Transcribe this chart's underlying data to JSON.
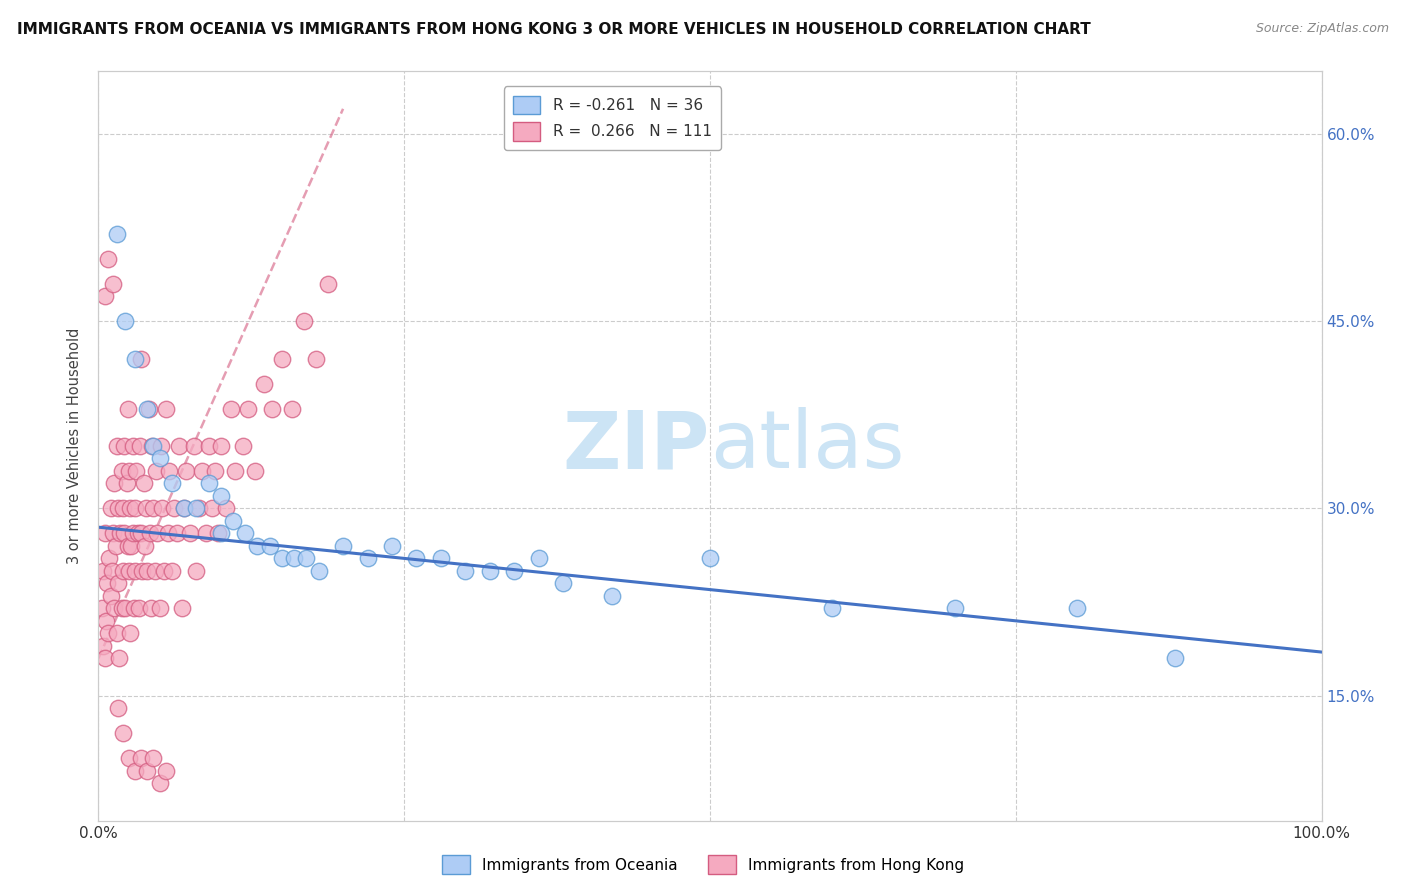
{
  "title": "IMMIGRANTS FROM OCEANIA VS IMMIGRANTS FROM HONG KONG 3 OR MORE VEHICLES IN HOUSEHOLD CORRELATION CHART",
  "source": "Source: ZipAtlas.com",
  "ylabel": "3 or more Vehicles in Household",
  "xlim": [
    0.0,
    1.0
  ],
  "ylim": [
    0.05,
    0.65
  ],
  "yticks": [
    0.15,
    0.3,
    0.45,
    0.6
  ],
  "ytick_labels": [
    "15.0%",
    "30.0%",
    "45.0%",
    "60.0%"
  ],
  "xticks": [
    0.0,
    0.25,
    0.5,
    0.75,
    1.0
  ],
  "xtick_labels": [
    "0.0%",
    "",
    "",
    "",
    "100.0%"
  ],
  "legend_r1": "R = -0.261",
  "legend_n1": "N = 36",
  "legend_r2": "R =  0.266",
  "legend_n2": "N = 111",
  "legend_label1": "Immigrants from Oceania",
  "legend_label2": "Immigrants from Hong Kong",
  "color_oceania": "#aeccf5",
  "color_hk": "#f5aac0",
  "edge_oceania": "#5b9bd5",
  "edge_hk": "#d45c80",
  "line_oceania": "#4472c4",
  "line_hk": "#d45c80",
  "watermark_color": "#cce4f5",
  "background_color": "#ffffff",
  "grid_color": "#cccccc",
  "oceania_x": [
    0.015,
    0.022,
    0.03,
    0.04,
    0.045,
    0.05,
    0.06,
    0.07,
    0.08,
    0.09,
    0.1,
    0.1,
    0.11,
    0.12,
    0.13,
    0.14,
    0.15,
    0.16,
    0.17,
    0.18,
    0.2,
    0.22,
    0.24,
    0.26,
    0.28,
    0.3,
    0.32,
    0.34,
    0.36,
    0.38,
    0.42,
    0.5,
    0.6,
    0.7,
    0.8,
    0.88
  ],
  "oceania_y": [
    0.52,
    0.45,
    0.42,
    0.38,
    0.35,
    0.34,
    0.32,
    0.3,
    0.3,
    0.32,
    0.31,
    0.28,
    0.29,
    0.28,
    0.27,
    0.27,
    0.26,
    0.26,
    0.26,
    0.25,
    0.27,
    0.26,
    0.27,
    0.26,
    0.26,
    0.25,
    0.25,
    0.25,
    0.26,
    0.24,
    0.23,
    0.26,
    0.22,
    0.22,
    0.22,
    0.18
  ],
  "hk_x": [
    0.003,
    0.004,
    0.004,
    0.005,
    0.005,
    0.006,
    0.007,
    0.008,
    0.009,
    0.01,
    0.01,
    0.011,
    0.012,
    0.013,
    0.013,
    0.014,
    0.015,
    0.015,
    0.016,
    0.016,
    0.017,
    0.018,
    0.019,
    0.019,
    0.02,
    0.02,
    0.021,
    0.021,
    0.022,
    0.023,
    0.024,
    0.024,
    0.025,
    0.025,
    0.026,
    0.026,
    0.027,
    0.028,
    0.028,
    0.029,
    0.03,
    0.03,
    0.031,
    0.032,
    0.033,
    0.034,
    0.035,
    0.035,
    0.036,
    0.037,
    0.038,
    0.039,
    0.04,
    0.041,
    0.042,
    0.043,
    0.044,
    0.045,
    0.046,
    0.047,
    0.048,
    0.05,
    0.051,
    0.052,
    0.054,
    0.055,
    0.057,
    0.058,
    0.06,
    0.062,
    0.064,
    0.066,
    0.068,
    0.07,
    0.072,
    0.075,
    0.078,
    0.08,
    0.082,
    0.085,
    0.088,
    0.09,
    0.093,
    0.095,
    0.098,
    0.1,
    0.104,
    0.108,
    0.112,
    0.118,
    0.122,
    0.128,
    0.135,
    0.142,
    0.15,
    0.158,
    0.168,
    0.178,
    0.188,
    0.005,
    0.008,
    0.012,
    0.016,
    0.02,
    0.025,
    0.03,
    0.035,
    0.04,
    0.045,
    0.05,
    0.055
  ],
  "hk_y": [
    0.22,
    0.19,
    0.25,
    0.18,
    0.28,
    0.21,
    0.24,
    0.2,
    0.26,
    0.23,
    0.3,
    0.25,
    0.28,
    0.22,
    0.32,
    0.27,
    0.2,
    0.35,
    0.24,
    0.3,
    0.18,
    0.28,
    0.33,
    0.22,
    0.3,
    0.25,
    0.28,
    0.35,
    0.22,
    0.32,
    0.27,
    0.38,
    0.25,
    0.33,
    0.2,
    0.3,
    0.27,
    0.28,
    0.35,
    0.22,
    0.3,
    0.25,
    0.33,
    0.28,
    0.22,
    0.35,
    0.28,
    0.42,
    0.25,
    0.32,
    0.27,
    0.3,
    0.25,
    0.38,
    0.28,
    0.22,
    0.35,
    0.3,
    0.25,
    0.33,
    0.28,
    0.22,
    0.35,
    0.3,
    0.25,
    0.38,
    0.28,
    0.33,
    0.25,
    0.3,
    0.28,
    0.35,
    0.22,
    0.3,
    0.33,
    0.28,
    0.35,
    0.25,
    0.3,
    0.33,
    0.28,
    0.35,
    0.3,
    0.33,
    0.28,
    0.35,
    0.3,
    0.38,
    0.33,
    0.35,
    0.38,
    0.33,
    0.4,
    0.38,
    0.42,
    0.38,
    0.45,
    0.42,
    0.48,
    0.47,
    0.5,
    0.48,
    0.14,
    0.12,
    0.1,
    0.09,
    0.1,
    0.09,
    0.1,
    0.08,
    0.09
  ]
}
